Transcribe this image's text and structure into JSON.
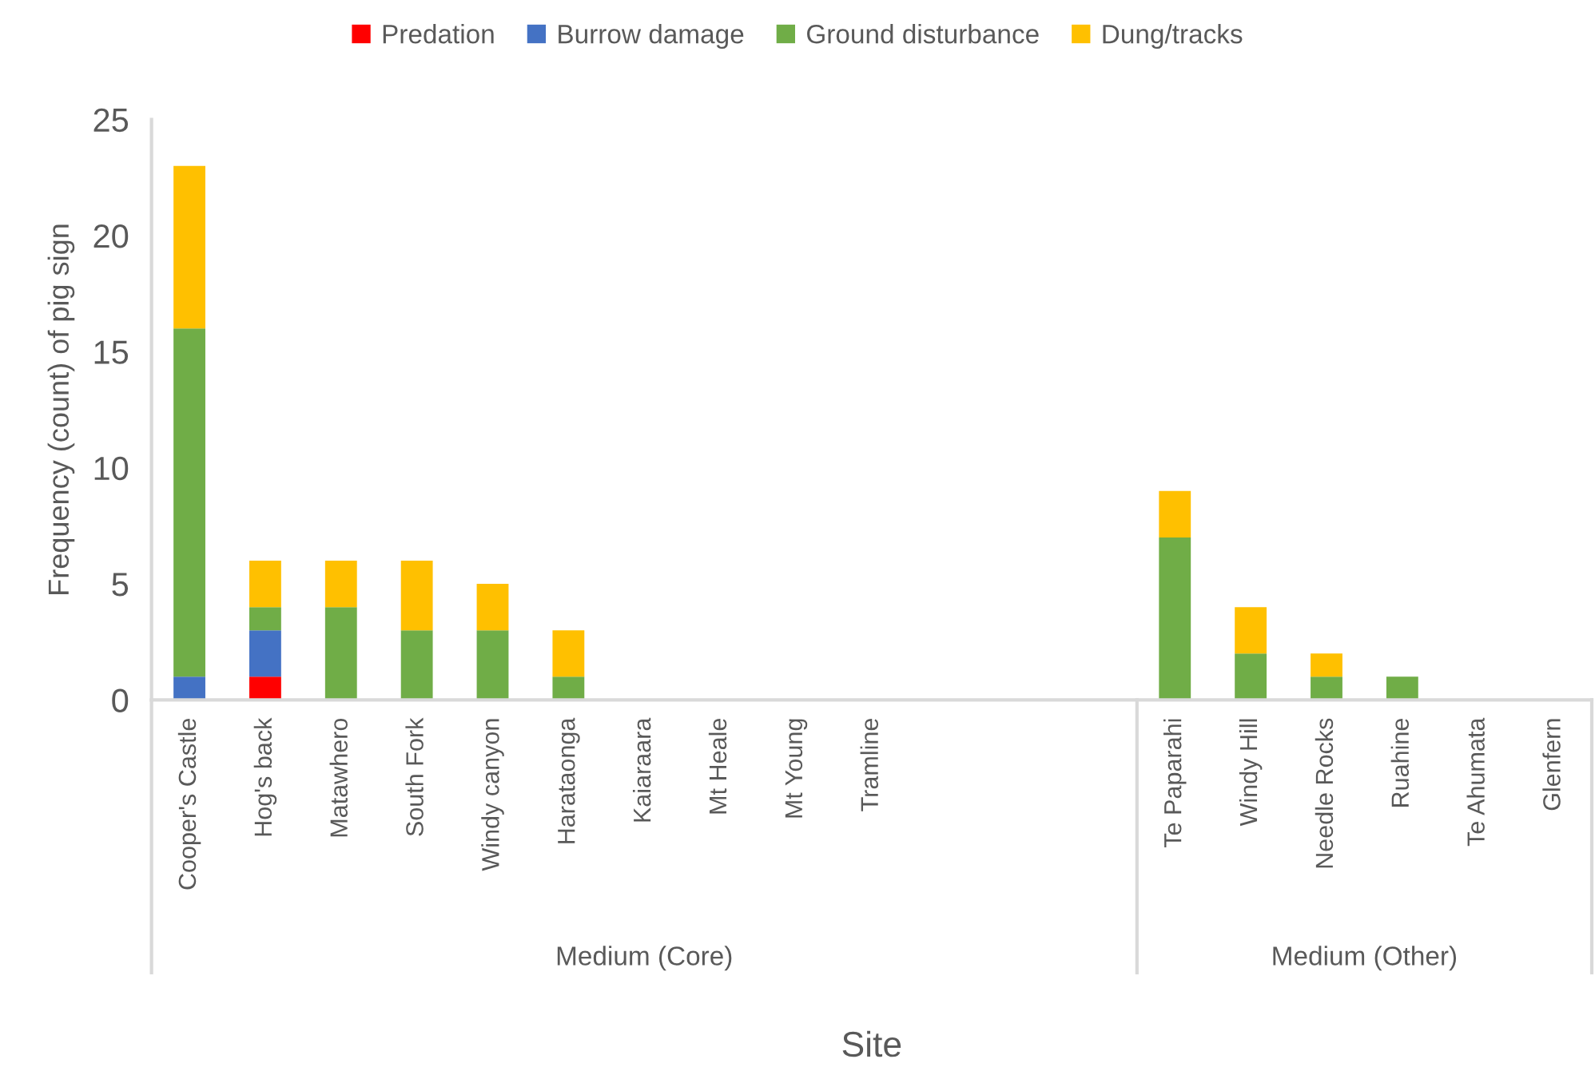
{
  "chart_data": {
    "type": "bar",
    "stacked": true,
    "xlabel": "Site",
    "ylabel": "Frequency (count) of pig sign",
    "categories": [
      "Cooper's Castle",
      "Hog's back",
      "Matawhero",
      "South Fork",
      "Windy canyon",
      "Harataonga",
      "Kaiaraara",
      "Mt Heale",
      "Mt Young",
      "Tramline",
      null,
      null,
      null,
      "Te Paparahi",
      "Windy Hill",
      "Needle Rocks",
      "Ruahine",
      "Te Ahumata",
      "Glenfern"
    ],
    "series": [
      {
        "name": "Predation",
        "color": "#ff0000",
        "values": [
          0,
          1,
          0,
          0,
          0,
          0,
          0,
          0,
          0,
          0,
          0,
          0,
          0,
          0,
          0,
          0,
          0,
          0,
          0
        ]
      },
      {
        "name": "Burrow damage",
        "color": "#4472c4",
        "values": [
          1,
          2,
          0,
          0,
          0,
          0,
          0,
          0,
          0,
          0,
          0,
          0,
          0,
          0,
          0,
          0,
          0,
          0,
          0
        ]
      },
      {
        "name": "Ground disturbance",
        "color": "#70ad47",
        "values": [
          15,
          1,
          4,
          3,
          3,
          1,
          0,
          0,
          0,
          0,
          0,
          0,
          0,
          7,
          2,
          1,
          1,
          0,
          0
        ]
      },
      {
        "name": "Dung/tracks",
        "color": "#ffc000",
        "values": [
          7,
          2,
          2,
          3,
          2,
          2,
          0,
          0,
          0,
          0,
          0,
          0,
          0,
          2,
          2,
          1,
          0,
          0,
          0
        ]
      }
    ],
    "ylim": [
      0,
      25
    ],
    "yticks": [
      0,
      5,
      10,
      15,
      20,
      25
    ],
    "grid": false,
    "legend": "top",
    "annotations": [
      "Medium (Core)",
      "Medium (Other)"
    ]
  }
}
